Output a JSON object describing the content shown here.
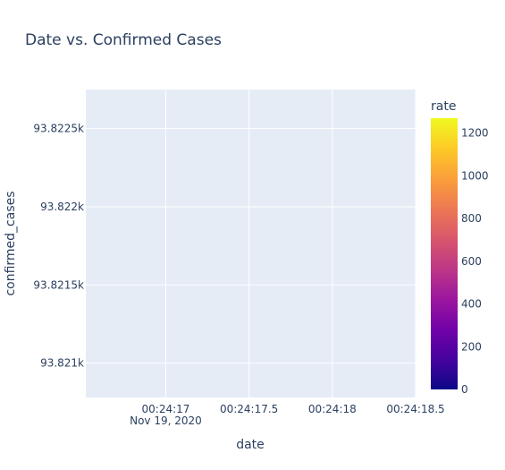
{
  "chart_data": {
    "type": "scatter",
    "title": "Date vs. Confirmed Cases",
    "xlabel": "date",
    "ylabel": "confirmed_cases",
    "x_ticks": [
      {
        "label": "00:24:17",
        "sublabel": "Nov 19, 2020",
        "value": 17.0
      },
      {
        "label": "00:24:17.5",
        "sublabel": "",
        "value": 17.5
      },
      {
        "label": "00:24:18",
        "sublabel": "",
        "value": 18.0
      },
      {
        "label": "00:24:18.5",
        "sublabel": "",
        "value": 18.5
      }
    ],
    "xlim": [
      16.52,
      18.5
    ],
    "y_ticks": [
      {
        "label": "93.821k",
        "value": 93821
      },
      {
        "label": "93.8215k",
        "value": 93821.5
      },
      {
        "label": "93.822k",
        "value": 93822
      },
      {
        "label": "93.8225k",
        "value": 93822.5
      }
    ],
    "ylim": [
      93820.78,
      93822.75
    ],
    "grid": true,
    "series": [],
    "colorbar": {
      "title": "rate",
      "ticks": [
        0,
        200,
        400,
        600,
        800,
        1000,
        1200
      ],
      "range": [
        0,
        1270
      ],
      "colors": [
        "#0d0887",
        "#46039f",
        "#7201a8",
        "#9c179e",
        "#bd3786",
        "#d8576b",
        "#ed7953",
        "#fb9f3a",
        "#fdca26",
        "#f0f921"
      ]
    }
  },
  "colors": {
    "plot_bg": "#e5ecf6",
    "grid": "#ffffff",
    "text": "#2a3f5f"
  }
}
